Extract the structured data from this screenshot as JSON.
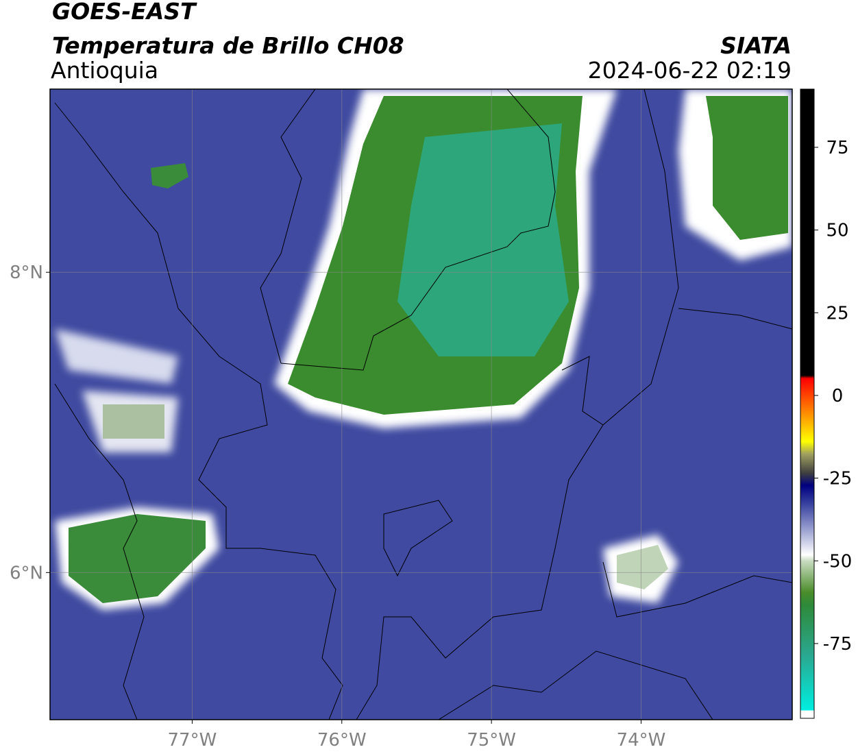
{
  "header": {
    "title": "GOES-EAST",
    "subtitle": "Temperatura de Brillo CH08",
    "region": "Antioquia",
    "source": "SIATA",
    "datetime": "2024-06-22 02:19"
  },
  "map": {
    "xlim": [
      -77.95,
      -72.99
    ],
    "ylim": [
      5.02,
      9.22
    ],
    "xticks": [
      {
        "value": -77,
        "label": "77°W"
      },
      {
        "value": -76,
        "label": "76°W"
      },
      {
        "value": -75,
        "label": "75°W"
      },
      {
        "value": -74,
        "label": "74°W"
      }
    ],
    "yticks": [
      {
        "value": 6,
        "label": "6°N"
      },
      {
        "value": 8,
        "label": "8°N"
      }
    ],
    "grid": true
  },
  "colorbar": {
    "lim": [
      -97.6,
      92.6
    ],
    "ticks": [
      -75,
      -50,
      -25,
      0,
      25,
      50,
      75
    ]
  }
}
